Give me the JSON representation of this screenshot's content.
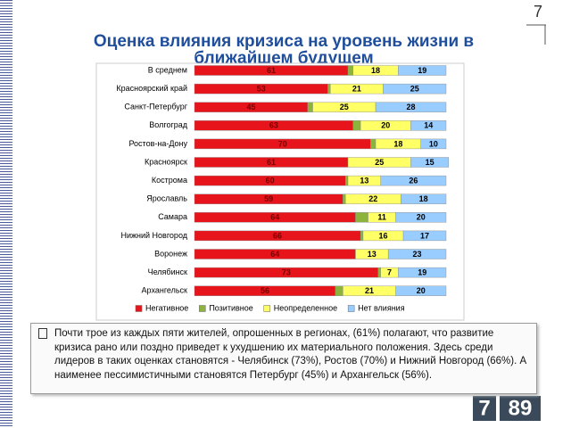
{
  "page_number": "7",
  "chart_data": {
    "type": "stacked-bar",
    "orientation": "horizontal",
    "title": "Оценка влияния кризиса на уровень жизни в ближайшем будущем",
    "categories": [
      "В среднем",
      "Красноярский край",
      "Санкт-Петербург",
      "Волгоград",
      "Ростов-на-Дону",
      "Красноярск",
      "Кострома",
      "Ярославль",
      "Самара",
      "Нижний Новгород",
      "Воронеж",
      "Челябинск",
      "Архангельск"
    ],
    "series": [
      {
        "name": "Негативное",
        "color": "#e8141c",
        "values": [
          61,
          53,
          45,
          63,
          70,
          61,
          60,
          59,
          64,
          66,
          64,
          73,
          56
        ],
        "labels": true
      },
      {
        "name": "Позитивное",
        "color": "#8cb43c",
        "values": [
          2,
          1,
          2,
          3,
          2,
          0,
          1,
          1,
          5,
          1,
          0,
          1,
          3
        ],
        "labels": false
      },
      {
        "name": "Неопределенное",
        "color": "#ffff66",
        "values": [
          18,
          21,
          25,
          20,
          18,
          25,
          13,
          22,
          11,
          16,
          13,
          7,
          21
        ],
        "labels": true
      },
      {
        "name": "Нет влияния",
        "color": "#99ccff",
        "values": [
          19,
          25,
          28,
          14,
          10,
          15,
          26,
          18,
          20,
          17,
          23,
          19,
          20
        ],
        "labels": true
      }
    ],
    "xlim": [
      0,
      100
    ],
    "legend": "bottom"
  },
  "note": "Почти трое из каждых пяти жителей, опрошенных в регионах, (61%) полагают, что развитие кризиса рано или поздно приведет к ухудшению их материального положения. Здесь среди лидеров в таких оценках становятся - Челябинск (73%),  Ростов (70%) и Нижний Новгород (66%). А наименее пессимистичными становятся Петербург (45%) и Архангельск (56%).",
  "logo": {
    "left": "7",
    "right": "89"
  }
}
